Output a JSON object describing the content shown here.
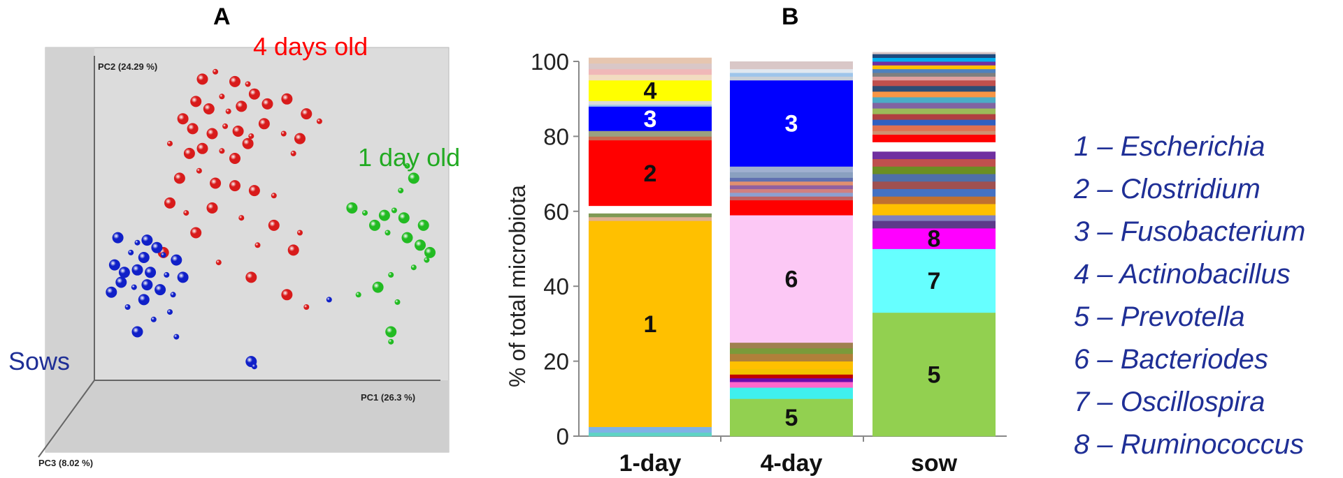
{
  "panelA": {
    "title": "A",
    "axis_labels": {
      "pc1": "PC1 (26.3 %)",
      "pc2": "PC2 (24.29 %)",
      "pc3": "PC3 (8.02 %)"
    },
    "group_labels": {
      "four_days": "4 days old",
      "one_day": "1 day old",
      "sows": "Sows"
    },
    "colors": {
      "four_days": "#d81b1b",
      "one_day": "#22bb22",
      "sows": "#1020c8",
      "four_days_text": "#ff0000",
      "one_day_text": "#22aa22",
      "sows_text": "#1f2f96",
      "box": "#dcdcdc"
    }
  },
  "panelB": {
    "title": "B",
    "ylabel": "% of total microbiota",
    "legend": [
      "1 – Escherichia",
      "2 – Clostridium",
      "3 – Fusobacterium",
      "4 – Actinobacillus",
      "5 – Prevotella",
      "6 – Bacteriodes",
      "7 – Oscillospira",
      "8 – Ruminococcus"
    ]
  },
  "chart_data": [
    {
      "type": "scatter",
      "title": "A",
      "xlabel": "PC1 (26.3 %)",
      "ylabel": "PC2 (24.29 %)",
      "zlabel": "PC3 (8.02 %)",
      "series": [
        {
          "name": "4 days old",
          "color": "#d81b1b",
          "points": [
            [
              0.3,
              0.92,
              1
            ],
            [
              0.34,
              0.95,
              0
            ],
            [
              0.4,
              0.91,
              1
            ],
            [
              0.44,
              0.9,
              0
            ],
            [
              0.46,
              0.86,
              1
            ],
            [
              0.36,
              0.85,
              0
            ],
            [
              0.28,
              0.83,
              1
            ],
            [
              0.32,
              0.8,
              1
            ],
            [
              0.38,
              0.79,
              0
            ],
            [
              0.42,
              0.81,
              1
            ],
            [
              0.5,
              0.82,
              1
            ],
            [
              0.56,
              0.84,
              1
            ],
            [
              0.62,
              0.78,
              1
            ],
            [
              0.66,
              0.75,
              0
            ],
            [
              0.24,
              0.76,
              1
            ],
            [
              0.27,
              0.72,
              1
            ],
            [
              0.33,
              0.7,
              1
            ],
            [
              0.37,
              0.73,
              0
            ],
            [
              0.41,
              0.71,
              1
            ],
            [
              0.45,
              0.69,
              0
            ],
            [
              0.49,
              0.74,
              1
            ],
            [
              0.55,
              0.7,
              0
            ],
            [
              0.6,
              0.68,
              1
            ],
            [
              0.2,
              0.66,
              0
            ],
            [
              0.26,
              0.62,
              1
            ],
            [
              0.3,
              0.64,
              1
            ],
            [
              0.36,
              0.63,
              0
            ],
            [
              0.4,
              0.6,
              1
            ],
            [
              0.44,
              0.66,
              1
            ],
            [
              0.58,
              0.62,
              0
            ],
            [
              0.23,
              0.52,
              1
            ],
            [
              0.29,
              0.55,
              0
            ],
            [
              0.34,
              0.5,
              1
            ],
            [
              0.4,
              0.49,
              1
            ],
            [
              0.46,
              0.47,
              1
            ],
            [
              0.52,
              0.45,
              0
            ],
            [
              0.2,
              0.42,
              1
            ],
            [
              0.25,
              0.38,
              0
            ],
            [
              0.33,
              0.4,
              1
            ],
            [
              0.42,
              0.36,
              0
            ],
            [
              0.52,
              0.33,
              1
            ],
            [
              0.6,
              0.3,
              0
            ],
            [
              0.28,
              0.3,
              1
            ],
            [
              0.47,
              0.25,
              0
            ],
            [
              0.58,
              0.23,
              1
            ],
            [
              0.18,
              0.22,
              1
            ],
            [
              0.35,
              0.18,
              0
            ],
            [
              0.45,
              0.12,
              1
            ],
            [
              0.56,
              0.05,
              1
            ],
            [
              0.62,
              0.0,
              0
            ]
          ]
        },
        {
          "name": "1 day old",
          "color": "#22bb22",
          "points": [
            [
              0.93,
              0.57,
              0
            ],
            [
              0.95,
              0.52,
              1
            ],
            [
              0.91,
              0.47,
              0
            ],
            [
              0.76,
              0.4,
              1
            ],
            [
              0.8,
              0.38,
              0
            ],
            [
              0.86,
              0.37,
              1
            ],
            [
              0.89,
              0.39,
              0
            ],
            [
              0.92,
              0.36,
              1
            ],
            [
              0.98,
              0.33,
              1
            ],
            [
              0.83,
              0.33,
              1
            ],
            [
              0.87,
              0.3,
              0
            ],
            [
              0.93,
              0.28,
              1
            ],
            [
              0.97,
              0.25,
              1
            ],
            [
              1.0,
              0.22,
              1
            ],
            [
              0.99,
              0.19,
              0
            ],
            [
              0.95,
              0.16,
              0
            ],
            [
              0.88,
              0.13,
              0
            ],
            [
              0.84,
              0.08,
              1
            ],
            [
              0.78,
              0.05,
              0
            ],
            [
              0.9,
              0.02,
              0
            ],
            [
              0.88,
              -0.1,
              1
            ],
            [
              0.88,
              -0.14,
              0
            ]
          ]
        },
        {
          "name": "Sows",
          "color": "#1020c8",
          "points": [
            [
              0.04,
              0.28,
              1
            ],
            [
              0.1,
              0.26,
              0
            ],
            [
              0.13,
              0.27,
              1
            ],
            [
              0.16,
              0.24,
              1
            ],
            [
              0.08,
              0.22,
              0
            ],
            [
              0.12,
              0.2,
              1
            ],
            [
              0.18,
              0.21,
              0
            ],
            [
              0.22,
              0.19,
              1
            ],
            [
              0.03,
              0.17,
              1
            ],
            [
              0.06,
              0.14,
              1
            ],
            [
              0.1,
              0.15,
              1
            ],
            [
              0.14,
              0.14,
              1
            ],
            [
              0.19,
              0.13,
              0
            ],
            [
              0.24,
              0.12,
              1
            ],
            [
              0.05,
              0.1,
              1
            ],
            [
              0.09,
              0.08,
              0
            ],
            [
              0.13,
              0.09,
              1
            ],
            [
              0.17,
              0.07,
              1
            ],
            [
              0.21,
              0.05,
              0
            ],
            [
              0.12,
              0.03,
              1
            ],
            [
              0.02,
              0.06,
              1
            ],
            [
              0.07,
              0.0,
              0
            ],
            [
              0.2,
              -0.02,
              0
            ],
            [
              0.15,
              -0.05,
              0
            ],
            [
              0.1,
              -0.1,
              1
            ],
            [
              0.22,
              -0.12,
              0
            ],
            [
              0.45,
              -0.22,
              1
            ],
            [
              0.46,
              -0.24,
              0
            ],
            [
              0.69,
              0.03,
              0
            ]
          ]
        }
      ]
    },
    {
      "type": "bar",
      "stacked": true,
      "title": "B",
      "ylabel": "% of total microbiota",
      "categories": [
        "1-day",
        "4-day",
        "sow"
      ],
      "ylim": [
        0,
        100
      ],
      "yticks": [
        0,
        20,
        40,
        60,
        80,
        100
      ],
      "bars": [
        {
          "category": "1-day",
          "segments": [
            {
              "v": 1.0,
              "c": "#5fd3c4"
            },
            {
              "v": 1.5,
              "c": "#7fb2e6"
            },
            {
              "v": 55.0,
              "c": "#ffc000",
              "label": "1"
            },
            {
              "v": 1.0,
              "c": "#e0b090"
            },
            {
              "v": 1.0,
              "c": "#7f9a55"
            },
            {
              "v": 2.0,
              "c": "#ffffff"
            },
            {
              "v": 17.5,
              "c": "#ff0000",
              "label": "2"
            },
            {
              "v": 1.0,
              "c": "#c76b4f"
            },
            {
              "v": 1.5,
              "c": "#9aa080"
            },
            {
              "v": 6.5,
              "c": "#0000ff",
              "label": "3",
              "lc": "#ffffff"
            },
            {
              "v": 0.5,
              "c": "#9ec5ea"
            },
            {
              "v": 1.0,
              "c": "#d9d9d9"
            },
            {
              "v": 5.5,
              "c": "#ffff00",
              "label": "4"
            },
            {
              "v": 1.5,
              "c": "#f2dcc0"
            },
            {
              "v": 1.5,
              "c": "#f0b8b8"
            },
            {
              "v": 1.5,
              "c": "#d9c7c7"
            },
            {
              "v": 1.5,
              "c": "#e6c6b0"
            }
          ]
        },
        {
          "category": "4-day",
          "segments": [
            {
              "v": 10.0,
              "c": "#92d050",
              "label": "5"
            },
            {
              "v": 3.0,
              "c": "#3ff0ee"
            },
            {
              "v": 1.5,
              "c": "#ff66cc"
            },
            {
              "v": 1.0,
              "c": "#6a0dad"
            },
            {
              "v": 1.0,
              "c": "#c00000"
            },
            {
              "v": 1.5,
              "c": "#f2c200"
            },
            {
              "v": 2.0,
              "c": "#ffc000"
            },
            {
              "v": 2.0,
              "c": "#b0803a"
            },
            {
              "v": 1.5,
              "c": "#7a9a3a"
            },
            {
              "v": 1.5,
              "c": "#a08050"
            },
            {
              "v": 34.0,
              "c": "#fcc8f5",
              "label": "6"
            },
            {
              "v": 4.0,
              "c": "#ff0000"
            },
            {
              "v": 1.0,
              "c": "#c06060"
            },
            {
              "v": 1.0,
              "c": "#8ca0d0"
            },
            {
              "v": 1.0,
              "c": "#d08080"
            },
            {
              "v": 1.0,
              "c": "#9060a0"
            },
            {
              "v": 1.0,
              "c": "#e09070"
            },
            {
              "v": 1.0,
              "c": "#6070b0"
            },
            {
              "v": 1.5,
              "c": "#8aa0c0"
            },
            {
              "v": 1.5,
              "c": "#a0b0d0"
            },
            {
              "v": 23.0,
              "c": "#0000ff",
              "label": "3",
              "lc": "#ffffff"
            },
            {
              "v": 1.0,
              "c": "#c8d0d8"
            },
            {
              "v": 1.0,
              "c": "#9ec5ea"
            },
            {
              "v": 1.0,
              "c": "#e0e8f0"
            },
            {
              "v": 2.0,
              "c": "#d9c7c7"
            }
          ]
        },
        {
          "category": "sow",
          "segments": [
            {
              "v": 33.0,
              "c": "#92d050",
              "label": "5"
            },
            {
              "v": 17.0,
              "c": "#66ffff",
              "label": "7"
            },
            {
              "v": 5.5,
              "c": "#ff00ff",
              "label": "8"
            },
            {
              "v": 2.0,
              "c": "#5c3a8a"
            },
            {
              "v": 1.5,
              "c": "#8080c0"
            },
            {
              "v": 3.0,
              "c": "#ffc000"
            },
            {
              "v": 2.0,
              "c": "#c07030"
            },
            {
              "v": 2.0,
              "c": "#4472c4"
            },
            {
              "v": 2.0,
              "c": "#a05050"
            },
            {
              "v": 2.0,
              "c": "#4f6fa8"
            },
            {
              "v": 2.0,
              "c": "#6b8e23"
            },
            {
              "v": 2.0,
              "c": "#c0504d"
            },
            {
              "v": 2.0,
              "c": "#7030a0"
            },
            {
              "v": 2.5,
              "c": "#ffffff"
            },
            {
              "v": 2.0,
              "c": "#ff0000"
            },
            {
              "v": 1.0,
              "c": "#d09070"
            },
            {
              "v": 1.5,
              "c": "#e07050"
            },
            {
              "v": 1.5,
              "c": "#3060c0"
            },
            {
              "v": 1.5,
              "c": "#b04040"
            },
            {
              "v": 1.5,
              "c": "#9bbb59"
            },
            {
              "v": 1.5,
              "c": "#8064a2"
            },
            {
              "v": 1.5,
              "c": "#4bacc6"
            },
            {
              "v": 1.5,
              "c": "#f79646"
            },
            {
              "v": 1.5,
              "c": "#2c4d75"
            },
            {
              "v": 1.5,
              "c": "#c0504d"
            },
            {
              "v": 1.0,
              "c": "#e0a0a0"
            },
            {
              "v": 1.0,
              "c": "#7f7f7f"
            },
            {
              "v": 1.0,
              "c": "#4f81bd"
            },
            {
              "v": 1.0,
              "c": "#ffc000"
            },
            {
              "v": 1.0,
              "c": "#7030a0"
            },
            {
              "v": 1.0,
              "c": "#00b0f0"
            },
            {
              "v": 1.0,
              "c": "#1f497d"
            },
            {
              "v": 0.5,
              "c": "#d9c7c7"
            }
          ]
        }
      ]
    }
  ]
}
